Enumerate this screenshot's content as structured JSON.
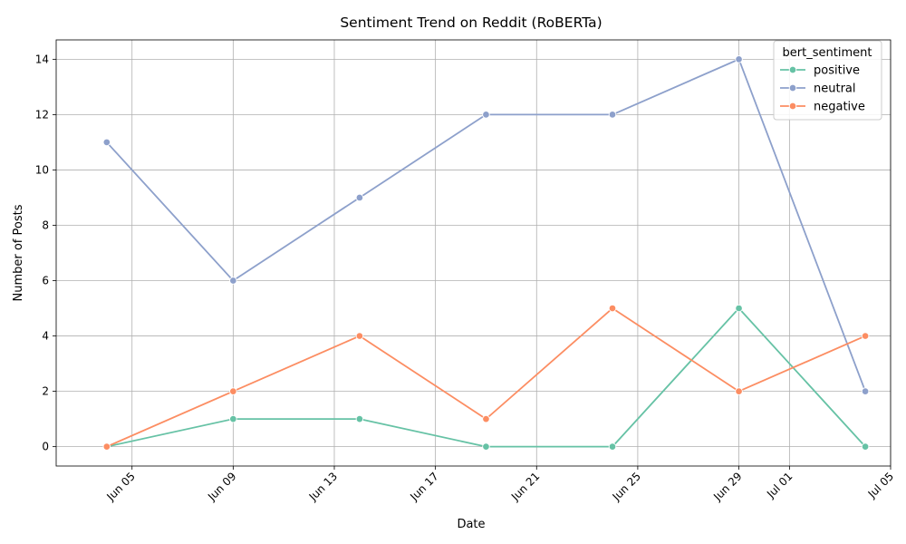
{
  "chart_data": {
    "type": "line",
    "title": "Sentiment Trend on Reddit (RoBERTa)",
    "xlabel": "Date",
    "ylabel": "Number of Posts",
    "x": [
      "2025-06-04",
      "2025-06-09",
      "2025-06-14",
      "2025-06-19",
      "2025-06-24",
      "2025-06-29",
      "2025-07-04"
    ],
    "x_ticks": [
      "Jun 05",
      "Jun 09",
      "Jun 13",
      "Jun 17",
      "Jun 21",
      "Jun 25",
      "Jun 29",
      "Jul 01",
      "Jul 05"
    ],
    "x_tick_dates": [
      "2025-06-05",
      "2025-06-09",
      "2025-06-13",
      "2025-06-17",
      "2025-06-21",
      "2025-06-25",
      "2025-06-29",
      "2025-07-01",
      "2025-07-05"
    ],
    "xlim": [
      "2025-06-02",
      "2025-07-05"
    ],
    "y_ticks": [
      "0",
      "2",
      "4",
      "6",
      "8",
      "10",
      "12",
      "14"
    ],
    "ylim": [
      -0.7,
      14.7
    ],
    "grid": true,
    "legend_title": "bert_sentiment",
    "legend_position": "top-right",
    "series": [
      {
        "name": "positive",
        "color": "#66c2a5",
        "values": [
          0,
          1,
          1,
          0,
          0,
          5,
          0
        ]
      },
      {
        "name": "neutral",
        "color": "#8da0cb",
        "values": [
          11,
          6,
          9,
          12,
          12,
          14,
          2
        ]
      },
      {
        "name": "negative",
        "color": "#fc8d62",
        "values": [
          0,
          2,
          4,
          1,
          5,
          2,
          4
        ]
      }
    ]
  }
}
